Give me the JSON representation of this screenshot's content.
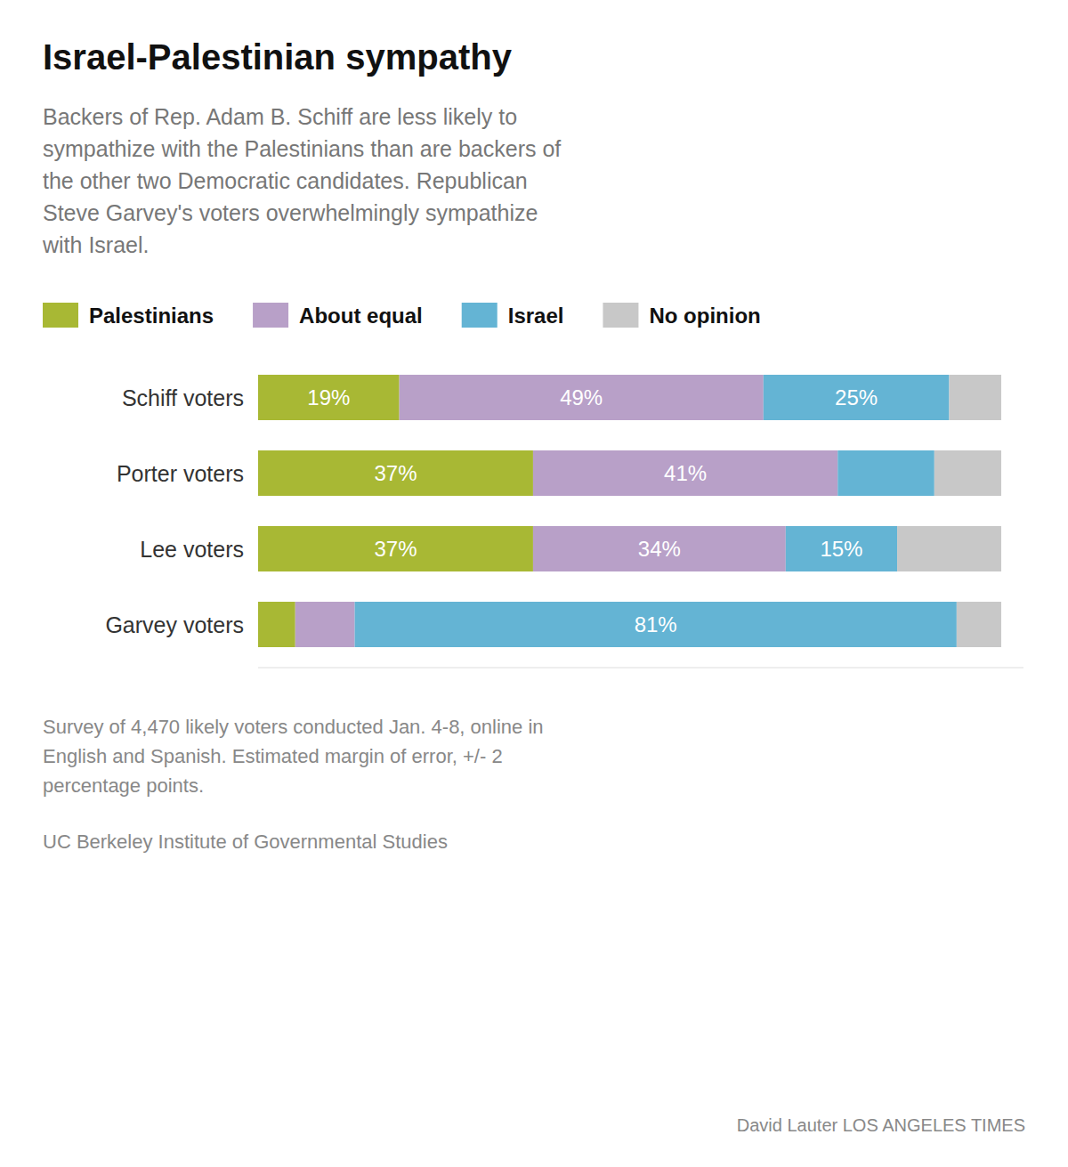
{
  "chart_data": {
    "type": "bar",
    "orientation": "horizontal",
    "stacked": true,
    "title": "Israel-Palestinian sympathy",
    "subtitle": "Backers of Rep. Adam B. Schiff are less likely to\nsympathize with the Palestinians than are backers of\nthe other two Democratic candidates. Republican\nSteve Garvey's voters overwhelmingly sympathize\nwith Israel.",
    "categories": [
      "Schiff voters",
      "Porter voters",
      "Lee voters",
      "Garvey voters"
    ],
    "series": [
      {
        "name": "Palestinians",
        "color": "#a8b834",
        "values": [
          19,
          37,
          37,
          5
        ],
        "value_labels": [
          "19%",
          "37%",
          "37%",
          null
        ]
      },
      {
        "name": "About equal",
        "color": "#b8a0c8",
        "values": [
          49,
          41,
          34,
          8
        ],
        "value_labels": [
          "49%",
          "41%",
          "34%",
          null
        ]
      },
      {
        "name": "Israel",
        "color": "#64b4d4",
        "values": [
          25,
          13,
          15,
          81
        ],
        "value_labels": [
          "25%",
          null,
          "15%",
          "81%"
        ]
      },
      {
        "name": "No opinion",
        "color": "#c8c8c8",
        "values": [
          7,
          9,
          14,
          6
        ],
        "value_labels": [
          null,
          null,
          null,
          null
        ]
      }
    ],
    "xlim": [
      0,
      103
    ],
    "data_labels": true,
    "tick_labels": false,
    "grid": false,
    "legend": "top",
    "annotations": [
      "Survey of 4,470 likely voters conducted Jan. 4-8, online in\nEnglish and Spanish. Estimated margin of error, +/- 2\npercentage points.",
      "UC Berkeley Institute of Governmental Studies",
      "David Lauter  LOS ANGELES TIMES"
    ]
  }
}
